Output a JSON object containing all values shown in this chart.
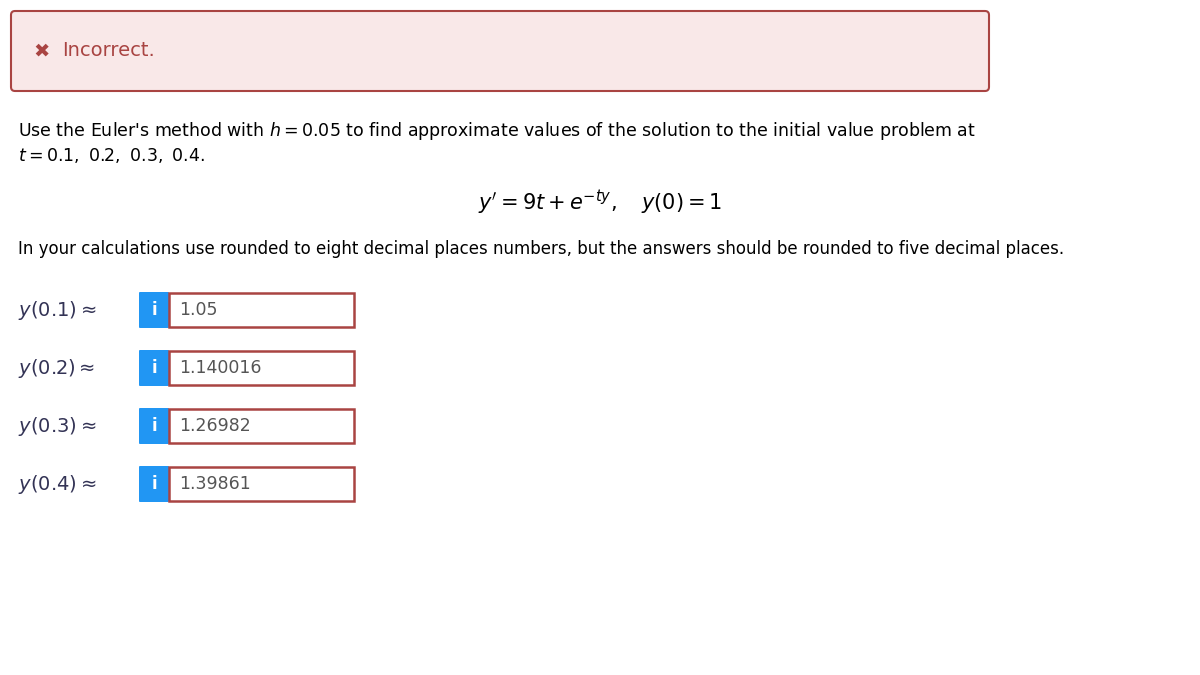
{
  "bg_color": "#ffffff",
  "incorrect_box_bg": "#f9e8e8",
  "incorrect_box_border": "#a94442",
  "incorrect_text": "Incorrect.",
  "incorrect_x_color": "#a94442",
  "calc_note": "In your calculations use rounded to eight decimal places numbers, but the answers should be rounded to five decimal places.",
  "rows": [
    {
      "label": "y(0.1)",
      "value": "1.05"
    },
    {
      "label": "y(0.2)",
      "value": "1.140016"
    },
    {
      "label": "y(0.3)",
      "value": "1.26982"
    },
    {
      "label": "y(0.4)",
      "value": "1.39861"
    }
  ],
  "input_box_border": "#a94442",
  "input_box_bg": "#ffffff",
  "info_btn_bg": "#2196F3",
  "info_btn_text": "i",
  "value_color": "#555555",
  "label_color": "#333355"
}
